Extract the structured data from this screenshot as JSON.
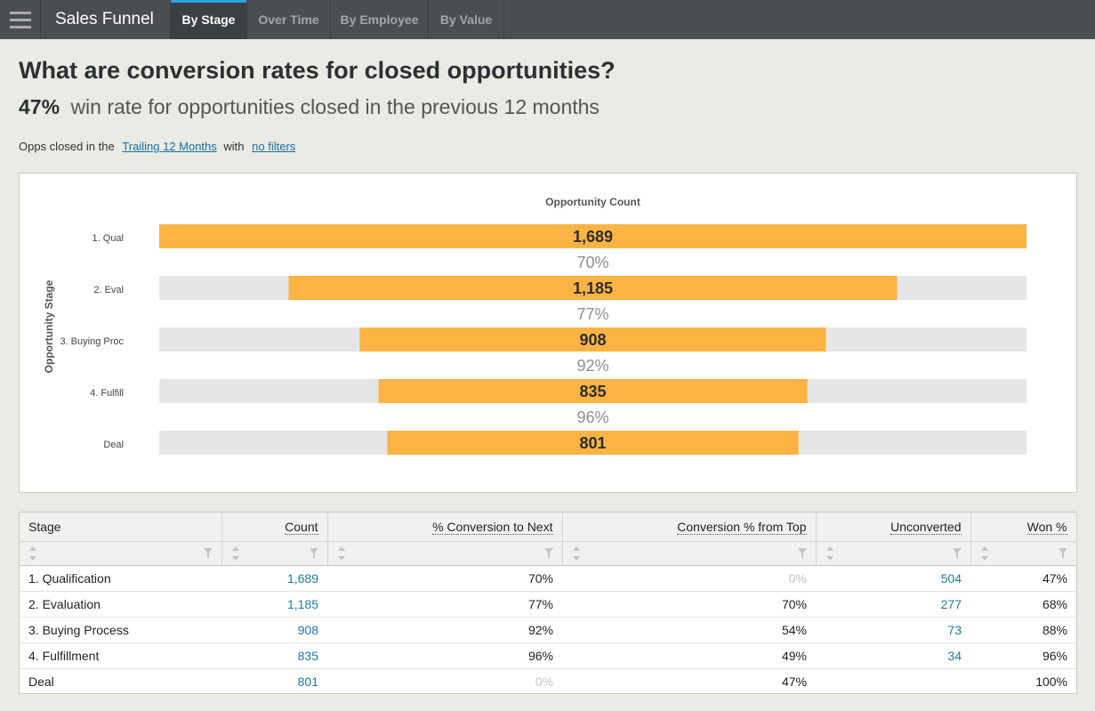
{
  "app": {
    "title": "Sales Funnel"
  },
  "tabs": [
    {
      "label": "By Stage",
      "active": true
    },
    {
      "label": "Over Time",
      "active": false
    },
    {
      "label": "By Employee",
      "active": false
    },
    {
      "label": "By Value",
      "active": false
    }
  ],
  "heading": "What are conversion rates for closed opportunities?",
  "summary": {
    "value": "47%",
    "text": "win rate for opportunities closed in the previous 12 months"
  },
  "filters": {
    "prefix": "Opps closed in the",
    "period": "Trailing 12 Months",
    "middle": "with",
    "filter": "no filters"
  },
  "colors": {
    "bar": "#fbb444",
    "track": "#e6e6e6",
    "link": "#1b7aa8",
    "accent": "#29a3dc"
  },
  "chart_data": {
    "type": "bar",
    "subtype": "funnel",
    "title": "Opportunity Count",
    "ylabel": "Opportunity Stage",
    "categories": [
      "1. Qual",
      "2. Eval",
      "3. Buying Proc",
      "4. Fulfill",
      "Deal"
    ],
    "values": [
      1689,
      1185,
      908,
      835,
      801
    ],
    "value_labels": [
      "1,689",
      "1,185",
      "908",
      "835",
      "801"
    ],
    "conversion_labels": [
      "70%",
      "77%",
      "92%",
      "96%"
    ],
    "xlim": [
      0,
      1689
    ]
  },
  "table": {
    "columns": [
      "Stage",
      "Count",
      "% Conversion to Next",
      "Conversion % from Top",
      "Unconverted",
      "Won %"
    ],
    "rows": [
      {
        "stage": "1. Qualification",
        "count": "1,689",
        "to_next": "70%",
        "from_top": "0%",
        "unconverted": "504",
        "won": "47%"
      },
      {
        "stage": "2. Evaluation",
        "count": "1,185",
        "to_next": "77%",
        "from_top": "70%",
        "unconverted": "277",
        "won": "68%"
      },
      {
        "stage": "3. Buying Process",
        "count": "908",
        "to_next": "92%",
        "from_top": "54%",
        "unconverted": "73",
        "won": "88%"
      },
      {
        "stage": "4. Fulfillment",
        "count": "835",
        "to_next": "96%",
        "from_top": "49%",
        "unconverted": "34",
        "won": "96%"
      },
      {
        "stage": "Deal",
        "count": "801",
        "to_next": "0%",
        "from_top": "47%",
        "unconverted": "",
        "won": "100%"
      }
    ]
  }
}
